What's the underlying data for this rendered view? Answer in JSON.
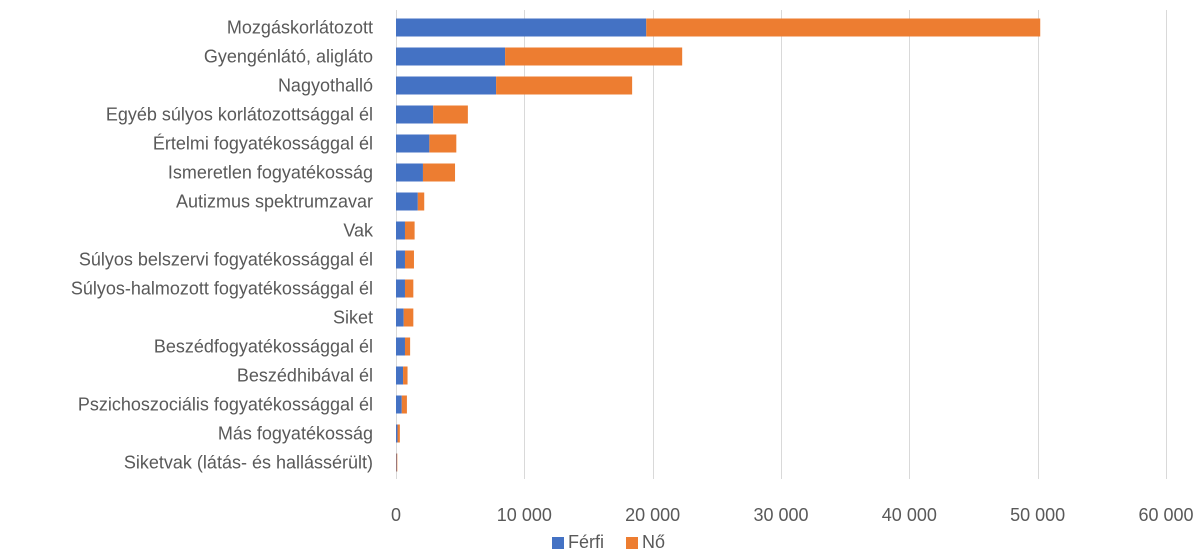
{
  "chart_data": {
    "type": "bar",
    "orientation": "horizontal",
    "stacked": true,
    "categories": [
      "Mozgáskorlátozott",
      "Gyengénlátó, aligláto",
      "Nagyothalló",
      "Egyéb súlyos korlátozottsággal él",
      "Értelmi fogyatékossággal él",
      "Ismeretlen fogyatékosság",
      "Autizmus spektrumzavar",
      "Vak",
      "Súlyos belszervi fogyatékossággal él",
      "Súlyos-halmozott fogyatékossággal él",
      "Siket",
      "Beszédfogyatékossággal él",
      "Beszédhibával él",
      "Pszichoszociális fogyatékossággal él",
      "Más fogyatékosság",
      "Siketvak (látás- és hallássérült)"
    ],
    "series": [
      {
        "name": "Férfi",
        "color": "#4472c4",
        "values": [
          19500,
          8500,
          7800,
          2900,
          2600,
          2100,
          1700,
          700,
          700,
          700,
          600,
          700,
          550,
          450,
          120,
          40
        ]
      },
      {
        "name": "Nő",
        "color": "#ed7d31",
        "values": [
          30700,
          13800,
          10600,
          2700,
          2100,
          2500,
          500,
          750,
          700,
          650,
          750,
          400,
          350,
          400,
          180,
          60
        ]
      }
    ],
    "xlim": [
      0,
      60000
    ],
    "xticks": [
      0,
      10000,
      20000,
      30000,
      40000,
      50000,
      60000
    ],
    "xtick_labels": [
      "0",
      "10 000",
      "20 000",
      "30 000",
      "40 000",
      "50 000",
      "60 000"
    ],
    "grid": true,
    "legend_position": "bottom",
    "title": "",
    "xlabel": "",
    "ylabel": ""
  }
}
